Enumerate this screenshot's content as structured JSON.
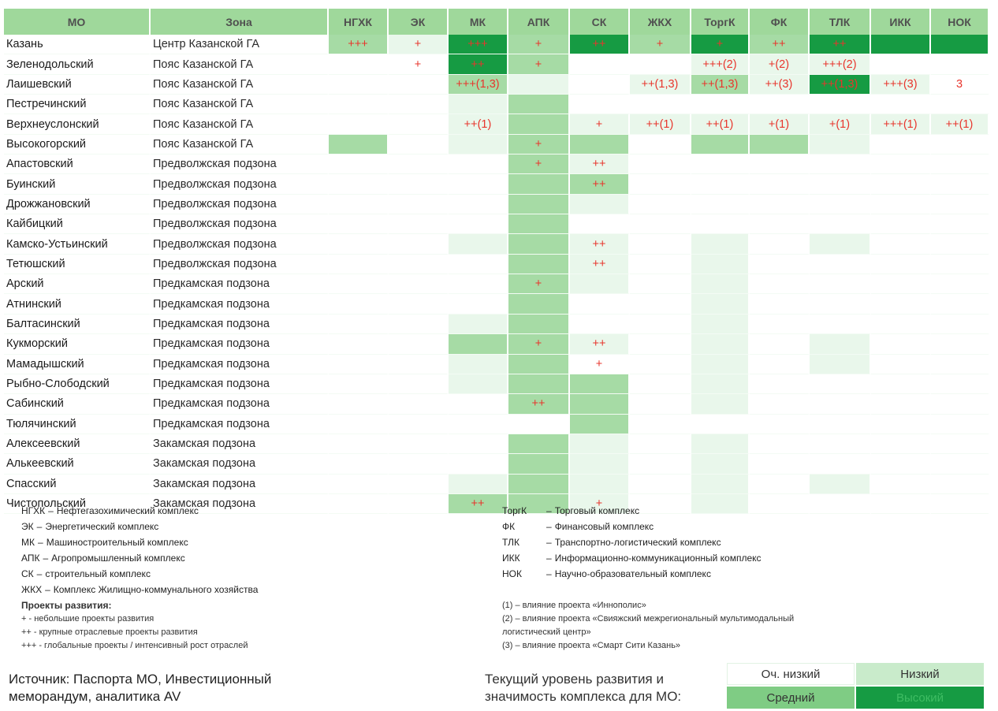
{
  "columns": [
    "МО",
    "Зона",
    "НГХК",
    "ЭК",
    "МК",
    "АПК",
    "СК",
    "ЖКХ",
    "ТоргК",
    "ФК",
    "ТЛК",
    "ИКК",
    "НОК"
  ],
  "levels": {
    "0": {
      "label": "Оч. низкий",
      "color": "#ffffff"
    },
    "1": {
      "label": "Низкий",
      "color": "#e9f7eb"
    },
    "2": {
      "label": "Средний",
      "color": "#a6dba5"
    },
    "3": {
      "label": "Высокий",
      "color": "#169b43"
    }
  },
  "rows": [
    {
      "mo": "Казань",
      "zone": "Центр Казанской ГА",
      "cells": [
        [
          "+++",
          2
        ],
        [
          "+",
          1
        ],
        [
          "+++",
          3
        ],
        [
          "+",
          2
        ],
        [
          "++",
          3
        ],
        [
          "+",
          2
        ],
        [
          "+",
          3
        ],
        [
          "++",
          2
        ],
        [
          "++",
          3
        ],
        [
          "",
          3
        ],
        [
          "",
          3
        ]
      ]
    },
    {
      "mo": "Зеленодольский",
      "zone": "Пояс Казанской ГА",
      "cells": [
        [
          "",
          0
        ],
        [
          "+",
          0
        ],
        [
          "++",
          3
        ],
        [
          "+",
          2
        ],
        [
          "",
          0
        ],
        [
          "",
          0
        ],
        [
          "+++(2)",
          1
        ],
        [
          "+(2)",
          1
        ],
        [
          "+++(2)",
          1
        ],
        [
          "",
          0
        ],
        [
          "",
          0
        ]
      ]
    },
    {
      "mo": "Лаишевский",
      "zone": "Пояс Казанской ГА",
      "cells": [
        [
          "",
          0
        ],
        [
          "",
          0
        ],
        [
          "+++(1,3)",
          2
        ],
        [
          "",
          1
        ],
        [
          "",
          0
        ],
        [
          "++(1,3)",
          1
        ],
        [
          "++(1,3)",
          2
        ],
        [
          "++(3)",
          1
        ],
        [
          "++(1,3)",
          3
        ],
        [
          "+++(3)",
          1
        ],
        [
          "3",
          0
        ]
      ]
    },
    {
      "mo": "Пестречинский",
      "zone": "Пояс Казанской ГА",
      "cells": [
        [
          "",
          0
        ],
        [
          "",
          0
        ],
        [
          "",
          1
        ],
        [
          "",
          2
        ],
        [
          "",
          0
        ],
        [
          "",
          0
        ],
        [
          "",
          0
        ],
        [
          "",
          0
        ],
        [
          "",
          0
        ],
        [
          "",
          0
        ],
        [
          "",
          0
        ]
      ]
    },
    {
      "mo": "Верхнеуслонский",
      "zone": "Пояс Казанской ГА",
      "cells": [
        [
          "",
          0
        ],
        [
          "",
          0
        ],
        [
          "++(1)",
          1
        ],
        [
          "",
          2
        ],
        [
          "+",
          1
        ],
        [
          "++(1)",
          1
        ],
        [
          "++(1)",
          1
        ],
        [
          "+(1)",
          1
        ],
        [
          "+(1)",
          1
        ],
        [
          "+++(1)",
          1
        ],
        [
          "++(1)",
          1
        ]
      ]
    },
    {
      "mo": "Высокогорский",
      "zone": "Пояс Казанской ГА",
      "cells": [
        [
          "",
          2
        ],
        [
          "",
          0
        ],
        [
          "",
          1
        ],
        [
          "+",
          2
        ],
        [
          "",
          2
        ],
        [
          "",
          0
        ],
        [
          "",
          2
        ],
        [
          "",
          2
        ],
        [
          "",
          1
        ],
        [
          "",
          0
        ],
        [
          "",
          0
        ]
      ]
    },
    {
      "mo": "Апастовский",
      "zone": "Предволжская подзона",
      "cells": [
        [
          "",
          0
        ],
        [
          "",
          0
        ],
        [
          "",
          0
        ],
        [
          "+",
          2
        ],
        [
          "++",
          1
        ],
        [
          "",
          0
        ],
        [
          "",
          0
        ],
        [
          "",
          0
        ],
        [
          "",
          0
        ],
        [
          "",
          0
        ],
        [
          "",
          0
        ]
      ]
    },
    {
      "mo": "Буинский",
      "zone": "Предволжская подзона",
      "cells": [
        [
          "",
          0
        ],
        [
          "",
          0
        ],
        [
          "",
          0
        ],
        [
          "",
          2
        ],
        [
          "++",
          2
        ],
        [
          "",
          0
        ],
        [
          "",
          0
        ],
        [
          "",
          0
        ],
        [
          "",
          0
        ],
        [
          "",
          0
        ],
        [
          "",
          0
        ]
      ]
    },
    {
      "mo": "Дрожжановский",
      "zone": "Предволжская подзона",
      "cells": [
        [
          "",
          0
        ],
        [
          "",
          0
        ],
        [
          "",
          0
        ],
        [
          "",
          2
        ],
        [
          "",
          1
        ],
        [
          "",
          0
        ],
        [
          "",
          0
        ],
        [
          "",
          0
        ],
        [
          "",
          0
        ],
        [
          "",
          0
        ],
        [
          "",
          0
        ]
      ]
    },
    {
      "mo": "Кайбицкий",
      "zone": "Предволжская подзона",
      "cells": [
        [
          "",
          0
        ],
        [
          "",
          0
        ],
        [
          "",
          0
        ],
        [
          "",
          2
        ],
        [
          "",
          0
        ],
        [
          "",
          0
        ],
        [
          "",
          0
        ],
        [
          "",
          0
        ],
        [
          "",
          0
        ],
        [
          "",
          0
        ],
        [
          "",
          0
        ]
      ]
    },
    {
      "mo": "Камско-Устьинский",
      "zone": "Предволжская подзона",
      "cells": [
        [
          "",
          0
        ],
        [
          "",
          0
        ],
        [
          "",
          1
        ],
        [
          "",
          2
        ],
        [
          "++",
          1
        ],
        [
          "",
          0
        ],
        [
          "",
          1
        ],
        [
          "",
          0
        ],
        [
          "",
          1
        ],
        [
          "",
          0
        ],
        [
          "",
          0
        ]
      ]
    },
    {
      "mo": "Тетюшский",
      "zone": "Предволжская подзона",
      "cells": [
        [
          "",
          0
        ],
        [
          "",
          0
        ],
        [
          "",
          0
        ],
        [
          "",
          2
        ],
        [
          "++",
          1
        ],
        [
          "",
          0
        ],
        [
          "",
          1
        ],
        [
          "",
          0
        ],
        [
          "",
          0
        ],
        [
          "",
          0
        ],
        [
          "",
          0
        ]
      ]
    },
    {
      "mo": "Арский",
      "zone": "Предкамская подзона",
      "cells": [
        [
          "",
          0
        ],
        [
          "",
          0
        ],
        [
          "",
          0
        ],
        [
          "+",
          2
        ],
        [
          "",
          1
        ],
        [
          "",
          0
        ],
        [
          "",
          1
        ],
        [
          "",
          0
        ],
        [
          "",
          0
        ],
        [
          "",
          0
        ],
        [
          "",
          0
        ]
      ]
    },
    {
      "mo": "Атнинский",
      "zone": "Предкамская подзона",
      "cells": [
        [
          "",
          0
        ],
        [
          "",
          0
        ],
        [
          "",
          0
        ],
        [
          "",
          2
        ],
        [
          "",
          0
        ],
        [
          "",
          0
        ],
        [
          "",
          1
        ],
        [
          "",
          0
        ],
        [
          "",
          0
        ],
        [
          "",
          0
        ],
        [
          "",
          0
        ]
      ]
    },
    {
      "mo": "Балтасинский",
      "zone": "Предкамская подзона",
      "cells": [
        [
          "",
          0
        ],
        [
          "",
          0
        ],
        [
          "",
          1
        ],
        [
          "",
          2
        ],
        [
          "",
          0
        ],
        [
          "",
          0
        ],
        [
          "",
          1
        ],
        [
          "",
          0
        ],
        [
          "",
          0
        ],
        [
          "",
          0
        ],
        [
          "",
          0
        ]
      ]
    },
    {
      "mo": "Кукморский",
      "zone": "Предкамская подзона",
      "cells": [
        [
          "",
          0
        ],
        [
          "",
          0
        ],
        [
          "",
          2
        ],
        [
          "+",
          2
        ],
        [
          "++",
          1
        ],
        [
          "",
          0
        ],
        [
          "",
          1
        ],
        [
          "",
          0
        ],
        [
          "",
          1
        ],
        [
          "",
          0
        ],
        [
          "",
          0
        ]
      ]
    },
    {
      "mo": "Мамадышский",
      "zone": "Предкамская подзона",
      "cells": [
        [
          "",
          0
        ],
        [
          "",
          0
        ],
        [
          "",
          1
        ],
        [
          "",
          2
        ],
        [
          "+",
          0
        ],
        [
          "",
          0
        ],
        [
          "",
          1
        ],
        [
          "",
          0
        ],
        [
          "",
          1
        ],
        [
          "",
          0
        ],
        [
          "",
          0
        ]
      ]
    },
    {
      "mo": "Рыбно-Слободский",
      "zone": "Предкамская подзона",
      "cells": [
        [
          "",
          0
        ],
        [
          "",
          0
        ],
        [
          "",
          1
        ],
        [
          "",
          2
        ],
        [
          "",
          2
        ],
        [
          "",
          0
        ],
        [
          "",
          1
        ],
        [
          "",
          0
        ],
        [
          "",
          0
        ],
        [
          "",
          0
        ],
        [
          "",
          0
        ]
      ]
    },
    {
      "mo": "Сабинский",
      "zone": "Предкамская подзона",
      "cells": [
        [
          "",
          0
        ],
        [
          "",
          0
        ],
        [
          "",
          0
        ],
        [
          "++",
          2
        ],
        [
          "",
          2
        ],
        [
          "",
          0
        ],
        [
          "",
          1
        ],
        [
          "",
          0
        ],
        [
          "",
          0
        ],
        [
          "",
          0
        ],
        [
          "",
          0
        ]
      ]
    },
    {
      "mo": "Тюлячинский",
      "zone": "Предкамская подзона",
      "cells": [
        [
          "",
          0
        ],
        [
          "",
          0
        ],
        [
          "",
          0
        ],
        [
          "",
          0
        ],
        [
          "",
          2
        ],
        [
          "",
          0
        ],
        [
          "",
          0
        ],
        [
          "",
          0
        ],
        [
          "",
          0
        ],
        [
          "",
          0
        ],
        [
          "",
          0
        ]
      ]
    },
    {
      "mo": "Алексеевский",
      "zone": "Закамская подзона",
      "cells": [
        [
          "",
          0
        ],
        [
          "",
          0
        ],
        [
          "",
          0
        ],
        [
          "",
          2
        ],
        [
          "",
          1
        ],
        [
          "",
          0
        ],
        [
          "",
          1
        ],
        [
          "",
          0
        ],
        [
          "",
          0
        ],
        [
          "",
          0
        ],
        [
          "",
          0
        ]
      ]
    },
    {
      "mo": "Алькеевский",
      "zone": "Закамская подзона",
      "cells": [
        [
          "",
          0
        ],
        [
          "",
          0
        ],
        [
          "",
          0
        ],
        [
          "",
          2
        ],
        [
          "",
          1
        ],
        [
          "",
          0
        ],
        [
          "",
          1
        ],
        [
          "",
          0
        ],
        [
          "",
          0
        ],
        [
          "",
          0
        ],
        [
          "",
          0
        ]
      ]
    },
    {
      "mo": "Спасский",
      "zone": "Закамская подзона",
      "cells": [
        [
          "",
          0
        ],
        [
          "",
          0
        ],
        [
          "",
          1
        ],
        [
          "",
          2
        ],
        [
          "",
          1
        ],
        [
          "",
          0
        ],
        [
          "",
          1
        ],
        [
          "",
          0
        ],
        [
          "",
          1
        ],
        [
          "",
          0
        ],
        [
          "",
          0
        ]
      ]
    },
    {
      "mo": "Чистопольский",
      "zone": "Закамская подзона",
      "cells": [
        [
          "",
          0
        ],
        [
          "",
          0
        ],
        [
          "++",
          2
        ],
        [
          "",
          2
        ],
        [
          "+",
          1
        ],
        [
          "",
          0
        ],
        [
          "",
          1
        ],
        [
          "",
          0
        ],
        [
          "",
          0
        ],
        [
          "",
          0
        ],
        [
          "",
          0
        ]
      ]
    }
  ],
  "legend_left": [
    {
      "abbr": "НГХК",
      "text": "Нефтегазохимический комплекс"
    },
    {
      "abbr": "ЭК",
      "text": "Энергетический комплекс"
    },
    {
      "abbr": "МК",
      "text": "Машиностроительный комплекс"
    },
    {
      "abbr": "АПК",
      "text": "Агропромышленный комплекс"
    },
    {
      "abbr": "СК",
      "text": "строительный комплекс"
    },
    {
      "abbr": "ЖКХ",
      "text": "Комплекс Жилищно-коммунального хозяйства"
    }
  ],
  "legend_right": [
    {
      "abbr": "ТоргК",
      "text": "Торговый комплекс"
    },
    {
      "abbr": "ФК",
      "text": "Финансовый комплекс"
    },
    {
      "abbr": "ТЛК",
      "text": "Транспортно-логистический комплекс"
    },
    {
      "abbr": "ИКК",
      "text": "Информационно-коммуникационный комплекс"
    },
    {
      "abbr": "НОК",
      "text": "Научно-образовательный комплекс"
    }
  ],
  "projects": {
    "title": "Проекты развития:",
    "items": [
      "+ - небольшие проекты развития",
      "++ - крупные отраслевые проекты развития",
      "+++ - глобальные проекты / интенсивный рост отраслей"
    ]
  },
  "influence": [
    "(1) – влияние проекта «Иннополис»",
    "(2) – влияние проекта «Свияжский межрегиональный мультимодальный",
    "логистический центр»",
    "(3) – влияние проекта «Смарт Сити Казань»"
  ],
  "source_text": "Источник: Паспорта МО, Инвестиционный меморандум, аналитика AV",
  "level_label": "Текущий уровень развития и значимость комплекса для МО:"
}
